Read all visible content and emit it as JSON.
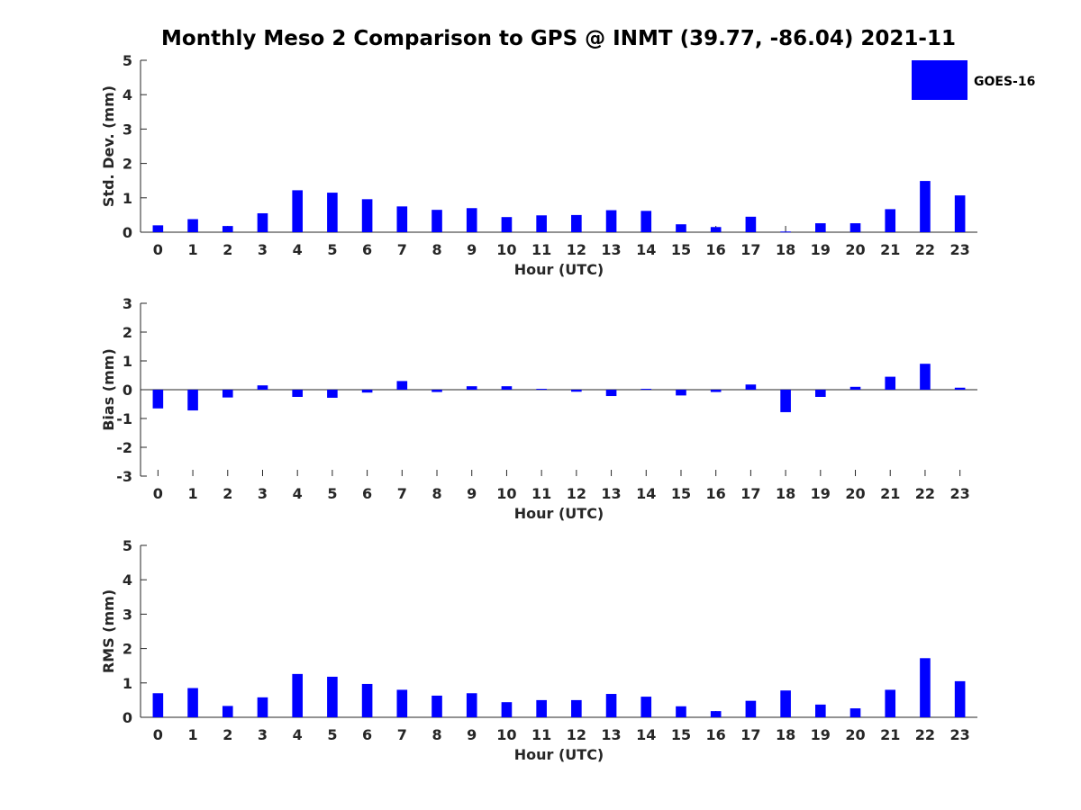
{
  "title": "Monthly Meso 2 Comparison to GPS @ INMT (39.77, -86.04) 2021-11",
  "legend": {
    "label": "GOES-16",
    "color": "#0000ff"
  },
  "bar_color": "#0000ff",
  "chart_data": [
    {
      "type": "bar",
      "name": "stddev",
      "xlabel": "Hour (UTC)",
      "ylabel": "Std. Dev. (mm)",
      "ylim": [
        0,
        5
      ],
      "yticks": [
        0,
        1,
        2,
        3,
        4,
        5
      ],
      "categories": [
        "0",
        "1",
        "2",
        "3",
        "4",
        "5",
        "6",
        "7",
        "8",
        "9",
        "10",
        "11",
        "12",
        "13",
        "14",
        "15",
        "16",
        "17",
        "18",
        "19",
        "20",
        "21",
        "22",
        "23"
      ],
      "values": [
        0.2,
        0.38,
        0.18,
        0.55,
        1.22,
        1.15,
        0.96,
        0.75,
        0.65,
        0.7,
        0.44,
        0.49,
        0.5,
        0.64,
        0.62,
        0.23,
        0.15,
        0.45,
        0.02,
        0.26,
        0.26,
        0.67,
        1.49,
        1.07
      ],
      "legend": "top-right"
    },
    {
      "type": "bar",
      "name": "bias",
      "xlabel": "Hour (UTC)",
      "ylabel": "Bias (mm)",
      "ylim": [
        -3,
        3
      ],
      "yticks": [
        -3,
        -2,
        -1,
        0,
        1,
        2,
        3
      ],
      "categories": [
        "0",
        "1",
        "2",
        "3",
        "4",
        "5",
        "6",
        "7",
        "8",
        "9",
        "10",
        "11",
        "12",
        "13",
        "14",
        "15",
        "16",
        "17",
        "18",
        "19",
        "20",
        "21",
        "22",
        "23"
      ],
      "values": [
        -0.65,
        -0.72,
        -0.27,
        0.15,
        -0.25,
        -0.28,
        -0.1,
        0.3,
        -0.08,
        0.12,
        0.12,
        0.03,
        -0.07,
        -0.22,
        0.03,
        -0.2,
        -0.08,
        0.18,
        -0.78,
        -0.25,
        0.1,
        0.45,
        0.9,
        0.07
      ]
    },
    {
      "type": "bar",
      "name": "rms",
      "xlabel": "Hour (UTC)",
      "ylabel": "RMS (mm)",
      "ylim": [
        0,
        5
      ],
      "yticks": [
        0,
        1,
        2,
        3,
        4,
        5
      ],
      "categories": [
        "0",
        "1",
        "2",
        "3",
        "4",
        "5",
        "6",
        "7",
        "8",
        "9",
        "10",
        "11",
        "12",
        "13",
        "14",
        "15",
        "16",
        "17",
        "18",
        "19",
        "20",
        "21",
        "22",
        "23"
      ],
      "values": [
        0.7,
        0.85,
        0.33,
        0.58,
        1.26,
        1.18,
        0.97,
        0.8,
        0.63,
        0.7,
        0.44,
        0.5,
        0.5,
        0.68,
        0.6,
        0.32,
        0.18,
        0.48,
        0.78,
        0.37,
        0.26,
        0.8,
        1.72,
        1.05
      ]
    }
  ]
}
